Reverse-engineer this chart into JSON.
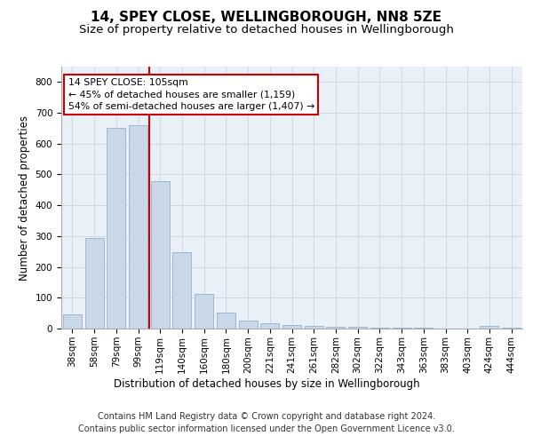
{
  "title1": "14, SPEY CLOSE, WELLINGBOROUGH, NN8 5ZE",
  "title2": "Size of property relative to detached houses in Wellingborough",
  "xlabel": "Distribution of detached houses by size in Wellingborough",
  "ylabel": "Number of detached properties",
  "categories": [
    "38sqm",
    "58sqm",
    "79sqm",
    "99sqm",
    "119sqm",
    "140sqm",
    "160sqm",
    "180sqm",
    "200sqm",
    "221sqm",
    "241sqm",
    "261sqm",
    "282sqm",
    "302sqm",
    "322sqm",
    "343sqm",
    "363sqm",
    "383sqm",
    "403sqm",
    "424sqm",
    "444sqm"
  ],
  "values": [
    47,
    293,
    650,
    660,
    478,
    248,
    113,
    52,
    27,
    17,
    12,
    10,
    6,
    6,
    4,
    3,
    2,
    1,
    0,
    8,
    2
  ],
  "bar_color": "#c8d8e8",
  "bar_edge_color": "#a0b8d0",
  "bar_linewidth": 0.7,
  "vline_x_index": 3.5,
  "vline_color": "#cc0000",
  "vline_linewidth": 1.5,
  "annotation_text": "14 SPEY CLOSE: 105sqm\n← 45% of detached houses are smaller (1,159)\n54% of semi-detached houses are larger (1,407) →",
  "annotation_box_color": "#ffffff",
  "annotation_box_edge": "#cc0000",
  "grid_color": "#d0d8e8",
  "ylim": [
    0,
    850
  ],
  "yticks": [
    0,
    100,
    200,
    300,
    400,
    500,
    600,
    700,
    800
  ],
  "background_color": "#eaf0f8",
  "footer_text": "Contains HM Land Registry data © Crown copyright and database right 2024.\nContains public sector information licensed under the Open Government Licence v3.0.",
  "title_fontsize": 11,
  "subtitle_fontsize": 9.5,
  "xlabel_fontsize": 8.5,
  "ylabel_fontsize": 8.5,
  "tick_fontsize": 7.5,
  "footer_fontsize": 7,
  "annot_fontsize": 7.8
}
